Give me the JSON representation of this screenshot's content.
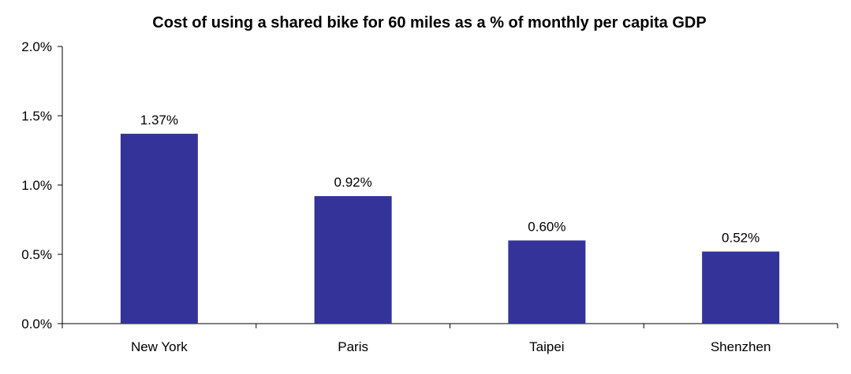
{
  "chart_data": {
    "type": "bar",
    "title": "Cost of using a shared bike for 60 miles as a % of monthly per capita GDP",
    "xlabel": "",
    "ylabel": "",
    "categories": [
      "New York",
      "Paris",
      "Taipei",
      "Shenzhen"
    ],
    "values": [
      1.37,
      0.92,
      0.6,
      0.52
    ],
    "data_labels": [
      "1.37%",
      "0.92%",
      "0.60%",
      "0.52%"
    ],
    "ylim": [
      0,
      2.0
    ],
    "yticks": [
      0,
      0.5,
      1.0,
      1.5,
      2.0
    ],
    "ytick_labels": [
      "0.0%",
      "0.5%",
      "1.0%",
      "1.5%",
      "2.0%"
    ],
    "bar_color": "#333399",
    "grid": false,
    "legend": "none"
  }
}
